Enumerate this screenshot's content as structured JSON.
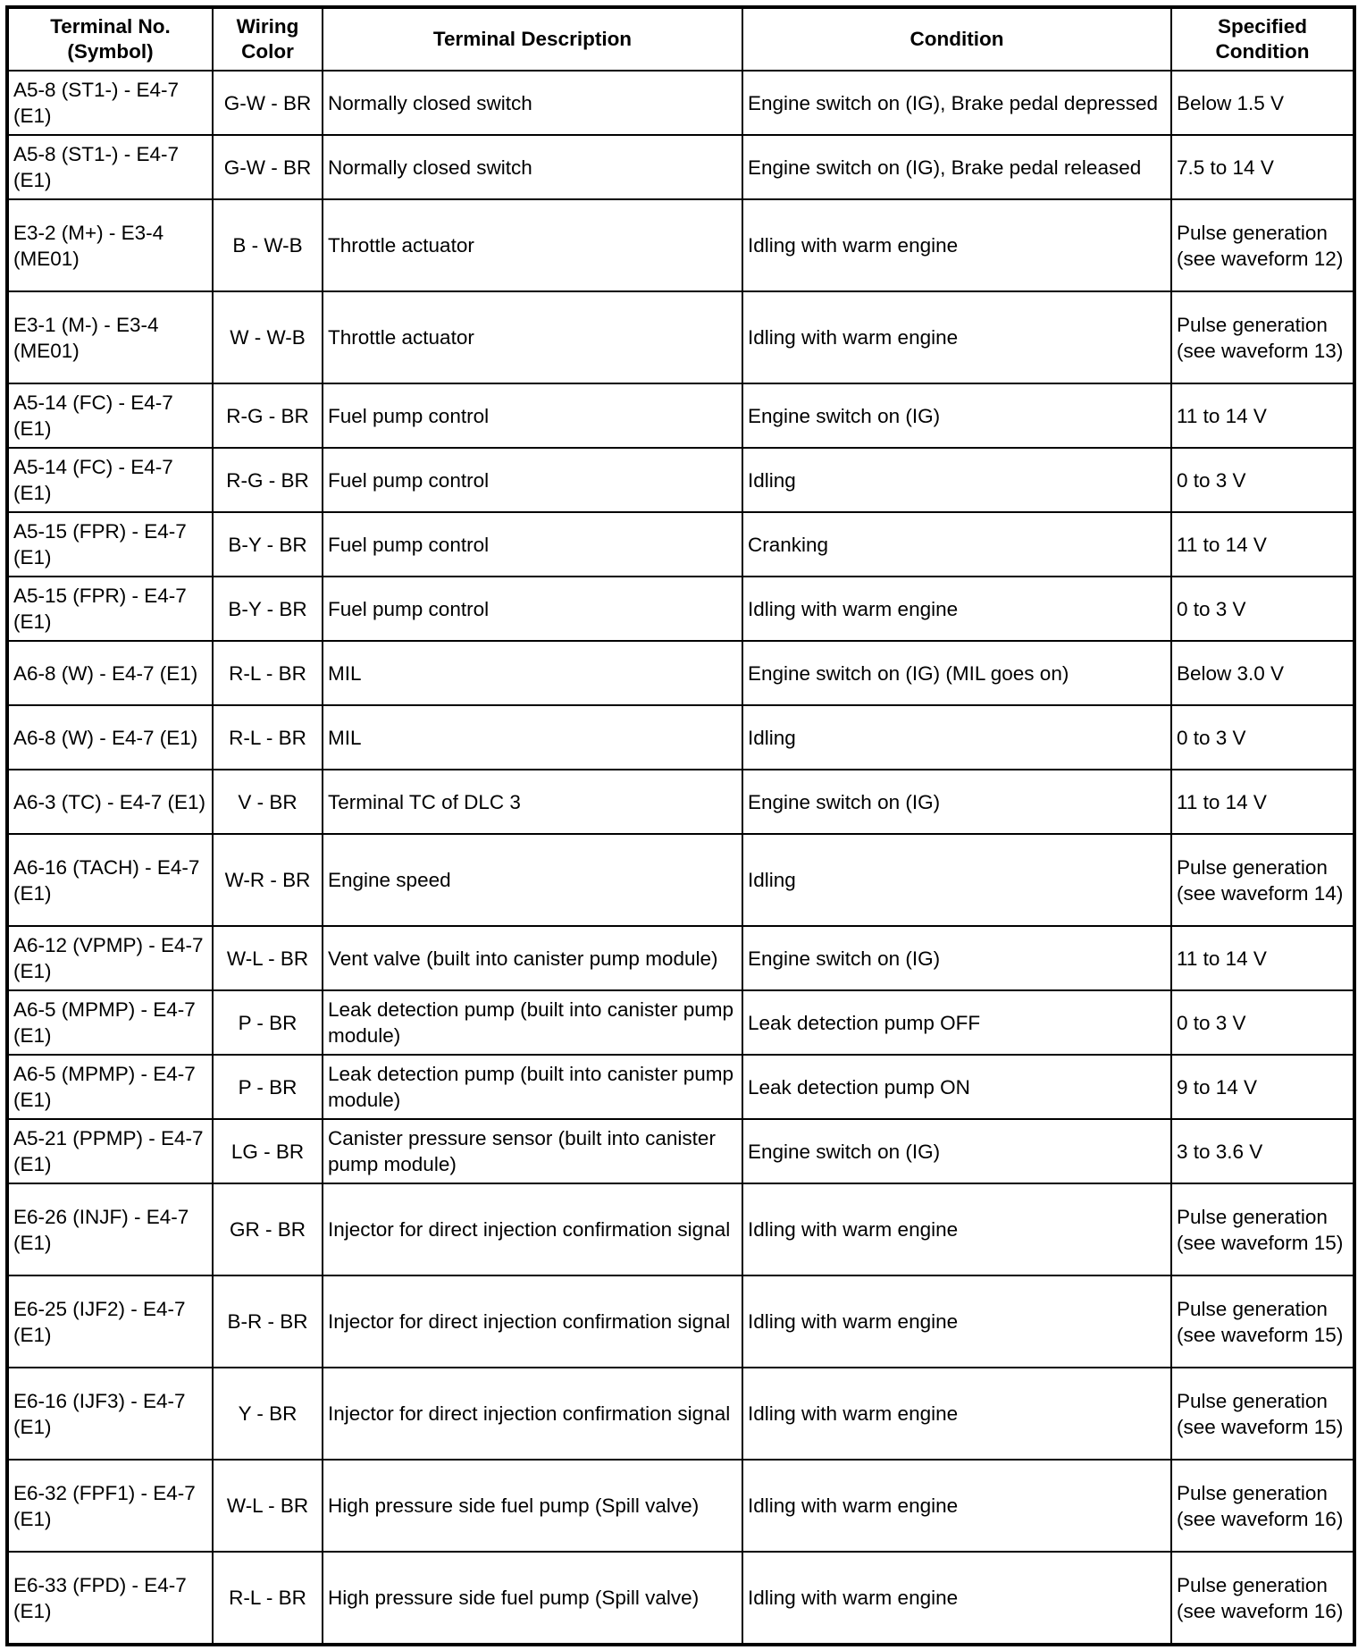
{
  "headers": [
    "Terminal No. (Symbol)",
    "Wiring Color",
    "Terminal Description",
    "Condition",
    "Specified Condition"
  ],
  "rows": [
    [
      "A5-8 (ST1-) - E4-7 (E1)",
      "G-W - BR",
      "Normally closed switch",
      "Engine switch on (IG), Brake pedal depressed",
      "Below 1.5 V"
    ],
    [
      "A5-8 (ST1-) - E4-7 (E1)",
      "G-W - BR",
      "Normally closed switch",
      "Engine switch on (IG), Brake pedal released",
      "7.5 to 14 V"
    ],
    [
      "E3-2 (M+) - E3-4 (ME01)",
      "B - W-B",
      "Throttle actuator",
      "Idling with warm engine",
      "Pulse generation (see waveform 12)"
    ],
    [
      "E3-1 (M-) - E3-4 (ME01)",
      "W - W-B",
      "Throttle actuator",
      "Idling with warm engine",
      "Pulse generation (see waveform 13)"
    ],
    [
      "A5-14 (FC) - E4-7 (E1)",
      "R-G - BR",
      "Fuel pump control",
      "Engine switch on (IG)",
      "11 to 14 V"
    ],
    [
      "A5-14 (FC) - E4-7 (E1)",
      "R-G - BR",
      "Fuel pump control",
      "Idling",
      "0 to 3 V"
    ],
    [
      "A5-15 (FPR) - E4-7 (E1)",
      "B-Y - BR",
      "Fuel pump control",
      "Cranking",
      "11 to 14 V"
    ],
    [
      "A5-15 (FPR) - E4-7 (E1)",
      "B-Y - BR",
      "Fuel pump control",
      "Idling with warm engine",
      "0 to 3 V"
    ],
    [
      "A6-8 (W) - E4-7 (E1)",
      "R-L - BR",
      "MIL",
      "Engine switch on (IG) (MIL goes on)",
      "Below 3.0 V"
    ],
    [
      "A6-8 (W) - E4-7 (E1)",
      "R-L - BR",
      "MIL",
      "Idling",
      "0 to 3 V"
    ],
    [
      "A6-3 (TC) - E4-7 (E1)",
      "V - BR",
      "Terminal TC of DLC 3",
      "Engine switch on (IG)",
      "11 to 14 V"
    ],
    [
      "A6-16 (TACH) - E4-7 (E1)",
      "W-R - BR",
      "Engine speed",
      "Idling",
      "Pulse generation (see waveform 14)"
    ],
    [
      "A6-12 (VPMP) - E4-7 (E1)",
      "W-L - BR",
      "Vent valve (built into canister pump module)",
      "Engine switch on (IG)",
      "11 to 14 V"
    ],
    [
      "A6-5 (MPMP) - E4-7 (E1)",
      "P - BR",
      "Leak detection pump (built into canister pump module)",
      "Leak detection pump OFF",
      "0 to 3 V"
    ],
    [
      "A6-5 (MPMP) - E4-7 (E1)",
      "P - BR",
      "Leak detection pump (built into canister pump module)",
      "Leak detection pump ON",
      "9 to 14 V"
    ],
    [
      "A5-21 (PPMP) - E4-7 (E1)",
      "LG - BR",
      "Canister pressure sensor (built into canister pump module)",
      "Engine switch on (IG)",
      "3 to 3.6 V"
    ],
    [
      "E6-26 (INJF) - E4-7 (E1)",
      "GR - BR",
      "Injector for direct injection confirmation signal",
      "Idling with warm engine",
      "Pulse generation (see waveform 15)"
    ],
    [
      "E6-25 (IJF2) - E4-7 (E1)",
      "B-R - BR",
      "Injector for direct injection confirmation signal",
      "Idling with warm engine",
      "Pulse generation (see waveform 15)"
    ],
    [
      "E6-16 (IJF3) - E4-7 (E1)",
      "Y - BR",
      "Injector for direct injection confirmation signal",
      "Idling with warm engine",
      "Pulse generation (see waveform 15)"
    ],
    [
      "E6-32 (FPF1) - E4-7 (E1)",
      "W-L - BR",
      "High pressure side fuel pump (Spill valve)",
      "Idling with warm engine",
      "Pulse generation (see waveform 16)"
    ],
    [
      "E6-33 (FPD) - E4-7 (E1)",
      "R-L - BR",
      "High pressure side fuel pump (Spill valve)",
      "Idling with warm engine",
      "Pulse generation (see waveform 16)"
    ]
  ]
}
